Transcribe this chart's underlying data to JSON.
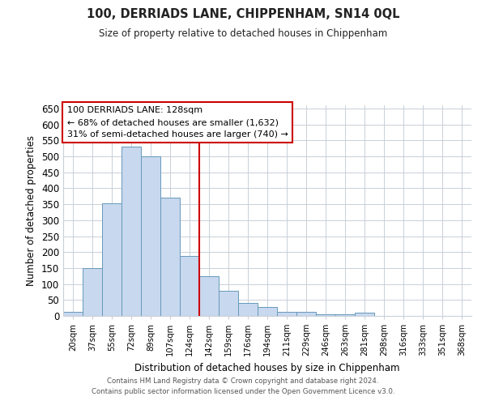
{
  "title": "100, DERRIADS LANE, CHIPPENHAM, SN14 0QL",
  "subtitle": "Size of property relative to detached houses in Chippenham",
  "xlabel": "Distribution of detached houses by size in Chippenham",
  "ylabel": "Number of detached properties",
  "bar_labels": [
    "20sqm",
    "37sqm",
    "55sqm",
    "72sqm",
    "89sqm",
    "107sqm",
    "124sqm",
    "142sqm",
    "159sqm",
    "176sqm",
    "194sqm",
    "211sqm",
    "229sqm",
    "246sqm",
    "263sqm",
    "281sqm",
    "298sqm",
    "316sqm",
    "333sqm",
    "351sqm",
    "368sqm"
  ],
  "bar_values": [
    13,
    150,
    353,
    530,
    500,
    370,
    188,
    125,
    78,
    40,
    28,
    13,
    13,
    5,
    5,
    10,
    0,
    0,
    0,
    0,
    0
  ],
  "bar_color": "#c8d8ee",
  "bar_edge_color": "#6699bb",
  "vline_index": 6,
  "vline_color": "#cc0000",
  "ylim": [
    0,
    660
  ],
  "yticks": [
    0,
    50,
    100,
    150,
    200,
    250,
    300,
    350,
    400,
    450,
    500,
    550,
    600,
    650
  ],
  "annotation_title": "100 DERRIADS LANE: 128sqm",
  "annotation_line1": "← 68% of detached houses are smaller (1,632)",
  "annotation_line2": "31% of semi-detached houses are larger (740) →",
  "annotation_box_color": "#ffffff",
  "annotation_box_edge": "#cc0000",
  "footer_line1": "Contains HM Land Registry data © Crown copyright and database right 2024.",
  "footer_line2": "Contains public sector information licensed under the Open Government Licence v3.0.",
  "background_color": "#ffffff",
  "grid_color": "#c8d0d8"
}
